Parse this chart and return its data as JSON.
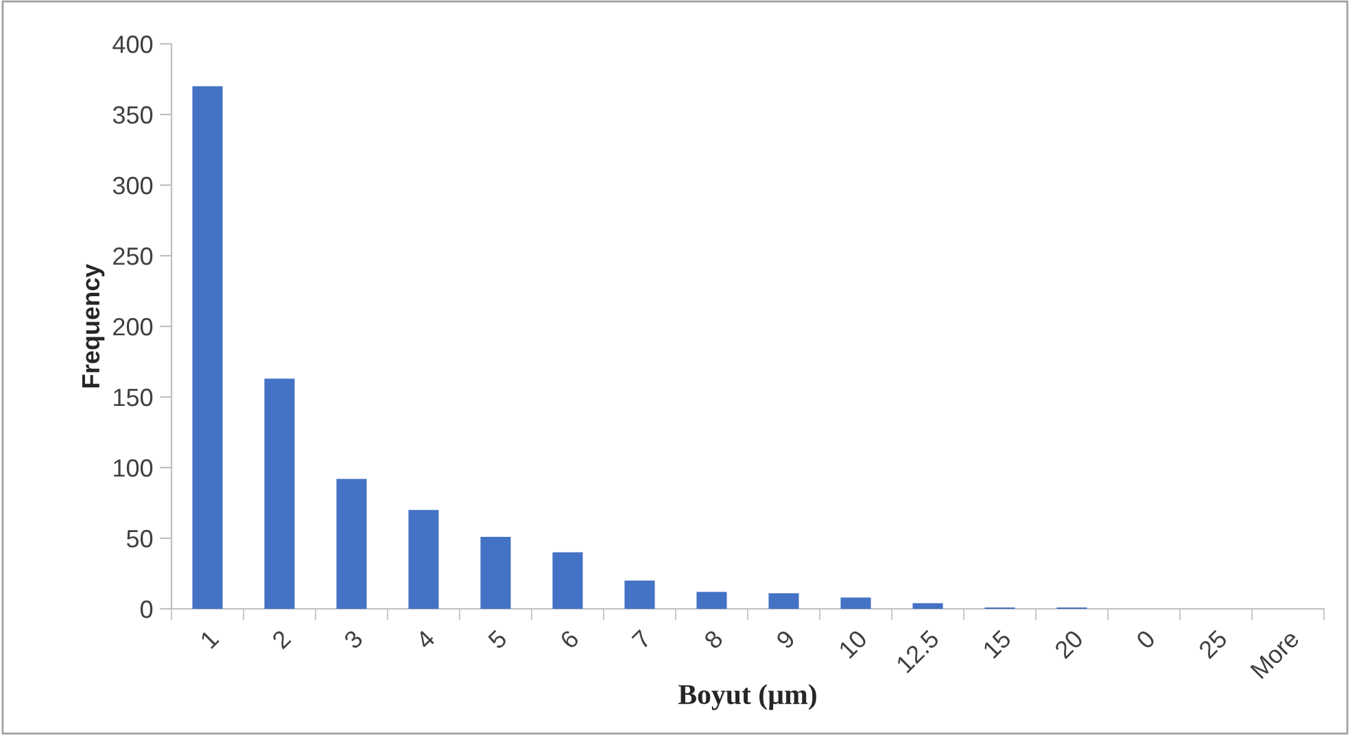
{
  "chart_data": {
    "type": "bar",
    "xlabel": "Boyut (µm)",
    "ylabel": "Frequency",
    "categories": [
      "1",
      "2",
      "3",
      "4",
      "5",
      "6",
      "7",
      "8",
      "9",
      "10",
      "12.5",
      "15",
      "20",
      "0",
      "25",
      "More"
    ],
    "values": [
      370,
      163,
      92,
      70,
      51,
      40,
      20,
      12,
      11,
      8,
      4,
      1,
      1,
      0,
      0,
      0
    ],
    "color": "#4472c4",
    "ylim": [
      0,
      400
    ],
    "yticks": [
      0,
      50,
      100,
      150,
      200,
      250,
      300,
      350,
      400
    ],
    "grid": false,
    "legend": false
  }
}
